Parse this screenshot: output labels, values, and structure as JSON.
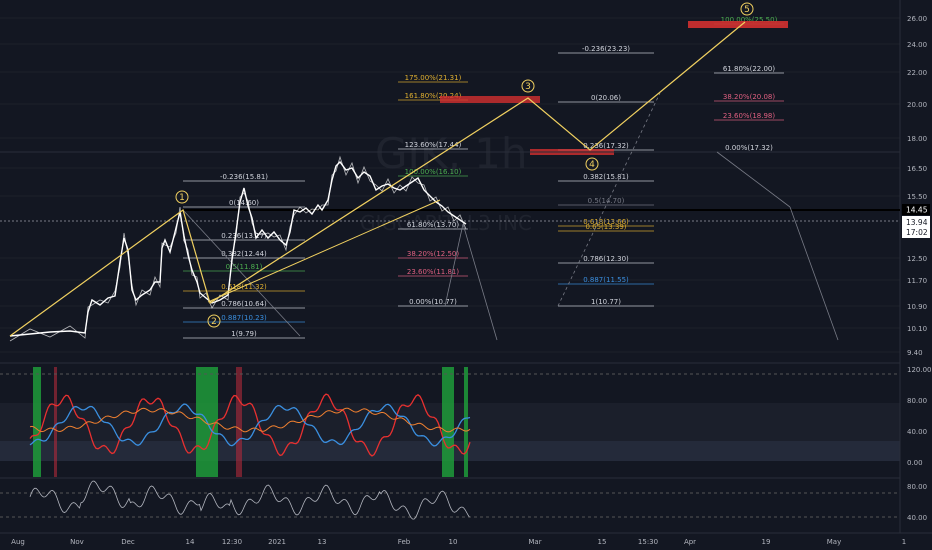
{
  "watermark": {
    "symbol": "GIK, 1h",
    "name": "GIGCAPITAL3 INC"
  },
  "colors": {
    "background": "#131722",
    "grid": "#1f2430",
    "price": "#ffffff",
    "wave": "#f0d060",
    "fib_label": "#d1d4dc",
    "fib_line": "#787b86",
    "red_zone": "#d33030",
    "green_band": "#1e9b3a",
    "rsi_red": "#e83030",
    "rsi_blue": "#3a8fe0",
    "rsi_orange": "#f08030",
    "fib_gold": "#e0b030",
    "fib_green": "#4caf50",
    "fib_blue": "#3a8fe0",
    "fib_pink": "#e06080"
  },
  "price_axis": {
    "ticks": [
      "26.00",
      "24.00",
      "22.00",
      "20.00",
      "18.00",
      "16.50",
      "15.50",
      "12.50",
      "11.70",
      "10.90",
      "10.10",
      "9.40"
    ],
    "current_price": "14.45",
    "secondary_price": "13.94",
    "countdown": "17:02"
  },
  "rsi_axis": {
    "ticks": [
      "120.00",
      "80.00",
      "40.00",
      "0.00"
    ]
  },
  "osc_axis": {
    "ticks": [
      "80.00",
      "40.00"
    ]
  },
  "time_axis": {
    "labels": [
      "Aug",
      "Nov",
      "Dec",
      "14",
      "12:30",
      "2021",
      "13",
      "Feb",
      "10",
      "Mar",
      "15",
      "15:30",
      "Apr",
      "19",
      "May",
      "1"
    ]
  },
  "wave_labels": [
    "1",
    "2",
    "3",
    "4",
    "5"
  ],
  "fib_sets": {
    "set_a": [
      "-0.236(15.81)",
      "0(14.60)",
      "0.236(13.17)",
      "0.382(12.44)",
      "0.5(11.81)",
      "0.618(11.32)",
      "0.786(10.64)",
      "0.887(10.23)",
      "1(9.79)"
    ],
    "set_b": [
      "175.00%(21.31)",
      "161.80%(20.24)",
      "123.60%(17.44)",
      "100.00%(16.10)",
      "61.80%(13.70)",
      "38.20%(12.50)",
      "23.60%(11.81)",
      "0.00%(10.77)"
    ],
    "set_c": [
      "-0.236(23.23)",
      "0(20.06)",
      "0.236(17.32)",
      "0.382(15.81)",
      "0.5(14.70)",
      "0.618(13.66)",
      "0.65(13.39)",
      "0.786(12.30)",
      "0.887(11.55)",
      "1(10.77)"
    ],
    "set_d": [
      "100.00%(25.50)",
      "61.80%(22.00)",
      "38.20%(20.08)",
      "23.60%(18.98)",
      "0.00%(17.32)"
    ]
  },
  "chart_data": {
    "type": "line",
    "title": "",
    "xlabel": "",
    "ylabel": "",
    "x": [
      "Aug",
      "Nov",
      "Dec",
      "14",
      "12:30",
      "2021",
      "13",
      "Feb",
      "10"
    ],
    "series": [
      {
        "values": [
          9.8,
          9.9,
          12.9,
          14.0,
          10.6,
          13.4,
          15.7,
          16.2,
          13.9
        ]
      }
    ],
    "wave_points": [
      {
        "label": "1",
        "value": 14.6
      },
      {
        "label": "2",
        "value": 10.6
      },
      {
        "label": "3",
        "value": 20.1
      },
      {
        "label": "4",
        "value": 17.3
      },
      {
        "label": "5",
        "value": 25.6
      }
    ],
    "ylim": [
      9.4,
      26.5
    ]
  }
}
